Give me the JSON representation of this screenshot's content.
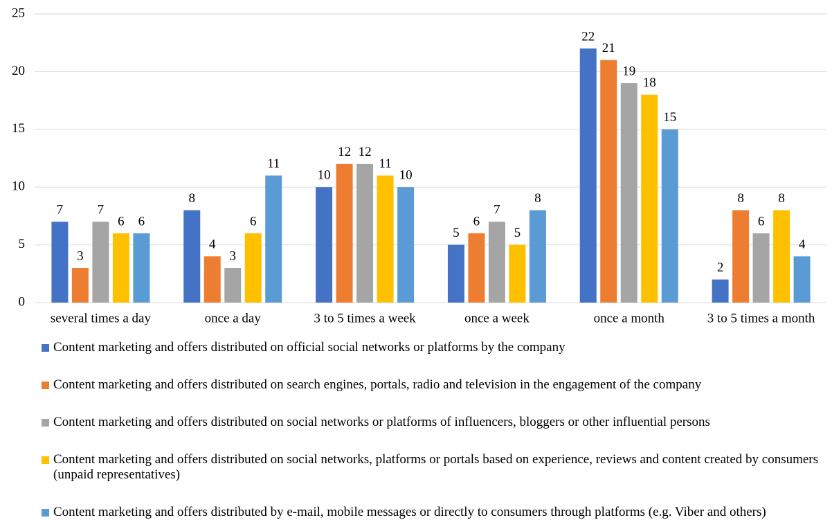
{
  "chart_data": {
    "type": "bar",
    "categories": [
      "several times a day",
      "once a day",
      "3 to 5 times a week",
      "once a week",
      "once a month",
      "3 to 5 times a month"
    ],
    "series": [
      {
        "name": "Content marketing and offers distributed on official social networks or platforms by the company",
        "color": "#4472c4",
        "values": [
          7,
          8,
          10,
          5,
          22,
          2
        ]
      },
      {
        "name": "Content marketing and offers distributed on search engines, portals, radio and television in the engagement of the company",
        "color": "#ed7d31",
        "values": [
          3,
          4,
          12,
          6,
          21,
          8
        ]
      },
      {
        "name": "Content marketing and offers distributed on social networks or platforms of influencers, bloggers or other influential persons",
        "color": "#a5a5a5",
        "values": [
          7,
          3,
          12,
          7,
          19,
          6
        ]
      },
      {
        "name": "Content marketing and offers distributed on social networks, platforms or portals based on experience, reviews and content created by consumers (unpaid representatives)",
        "color": "#ffc000",
        "values": [
          6,
          6,
          11,
          5,
          18,
          8
        ]
      },
      {
        "name": "Content marketing and offers distributed by e-mail, mobile messages or directly to consumers through platforms (e.g. Viber and others)",
        "color": "#5b9bd5",
        "values": [
          6,
          11,
          10,
          8,
          15,
          4
        ]
      }
    ],
    "ylim": [
      0,
      25
    ],
    "yticks": [
      0,
      5,
      10,
      15,
      20,
      25
    ],
    "grid": true,
    "legend": "bottom"
  }
}
